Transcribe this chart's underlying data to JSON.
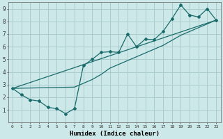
{
  "xlabel": "Humidex (Indice chaleur)",
  "xlim": [
    -0.5,
    23.5
  ],
  "ylim": [
    0.0,
    9.5
  ],
  "xticks": [
    0,
    1,
    2,
    3,
    4,
    5,
    6,
    7,
    8,
    9,
    10,
    11,
    12,
    13,
    14,
    15,
    16,
    17,
    18,
    19,
    20,
    21,
    22,
    23
  ],
  "yticks": [
    1,
    2,
    3,
    4,
    5,
    6,
    7,
    8,
    9
  ],
  "bg_color": "#cce8e8",
  "grid_color": "#aacccc",
  "line_color": "#1a6b6b",
  "line1_x": [
    0,
    1,
    2,
    3,
    4,
    5,
    6,
    7,
    8,
    9,
    10,
    11,
    12,
    13,
    14,
    15,
    16,
    17,
    18,
    19,
    20,
    21,
    22,
    23
  ],
  "line1_y": [
    2.7,
    2.2,
    1.8,
    1.7,
    1.2,
    1.1,
    0.7,
    1.1,
    4.5,
    5.0,
    5.55,
    5.6,
    5.55,
    7.0,
    6.0,
    6.6,
    6.55,
    7.2,
    8.2,
    9.3,
    8.5,
    8.35,
    9.0,
    8.1
  ],
  "line2_x": [
    0,
    23
  ],
  "line2_y": [
    2.7,
    8.1
  ],
  "line3_x": [
    0,
    7,
    8,
    9,
    10,
    11,
    12,
    13,
    14,
    15,
    16,
    17,
    18,
    19,
    20,
    21,
    22,
    23
  ],
  "line3_y": [
    2.7,
    2.8,
    3.1,
    3.4,
    3.8,
    4.3,
    4.6,
    4.9,
    5.2,
    5.5,
    5.8,
    6.1,
    6.5,
    6.9,
    7.2,
    7.5,
    7.8,
    8.1
  ]
}
